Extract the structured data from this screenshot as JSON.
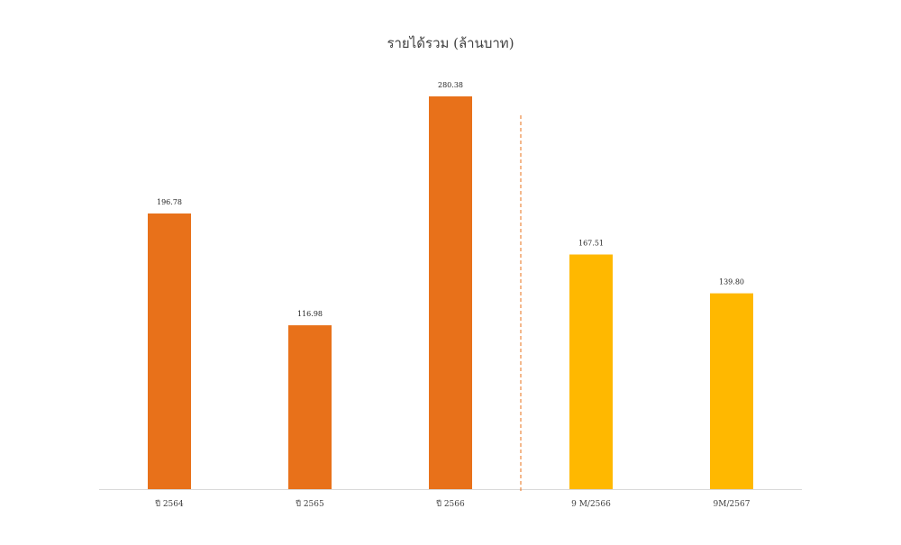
{
  "chart_data": {
    "type": "bar",
    "title": "รายได้รวม (ล้านบาท)",
    "categories": [
      "ปี 2564",
      "ปี 2565",
      "ปี 2566",
      "9 M/2566",
      "9M/2567"
    ],
    "values": [
      196.78,
      116.98,
      280.38,
      167.51,
      139.8
    ],
    "data_labels": [
      "196.78",
      "116.98",
      "280.38",
      "167.51",
      "139.80"
    ],
    "bar_colors": [
      "#E8711A",
      "#E8711A",
      "#E8711A",
      "#FFB800",
      "#FFB800"
    ],
    "divider": {
      "after_index": 2,
      "color": "#E8711A",
      "style": "dashed"
    },
    "xlabel": "",
    "ylabel": "",
    "ylim": [
      0,
      300
    ],
    "grid": false,
    "legend": "none"
  }
}
